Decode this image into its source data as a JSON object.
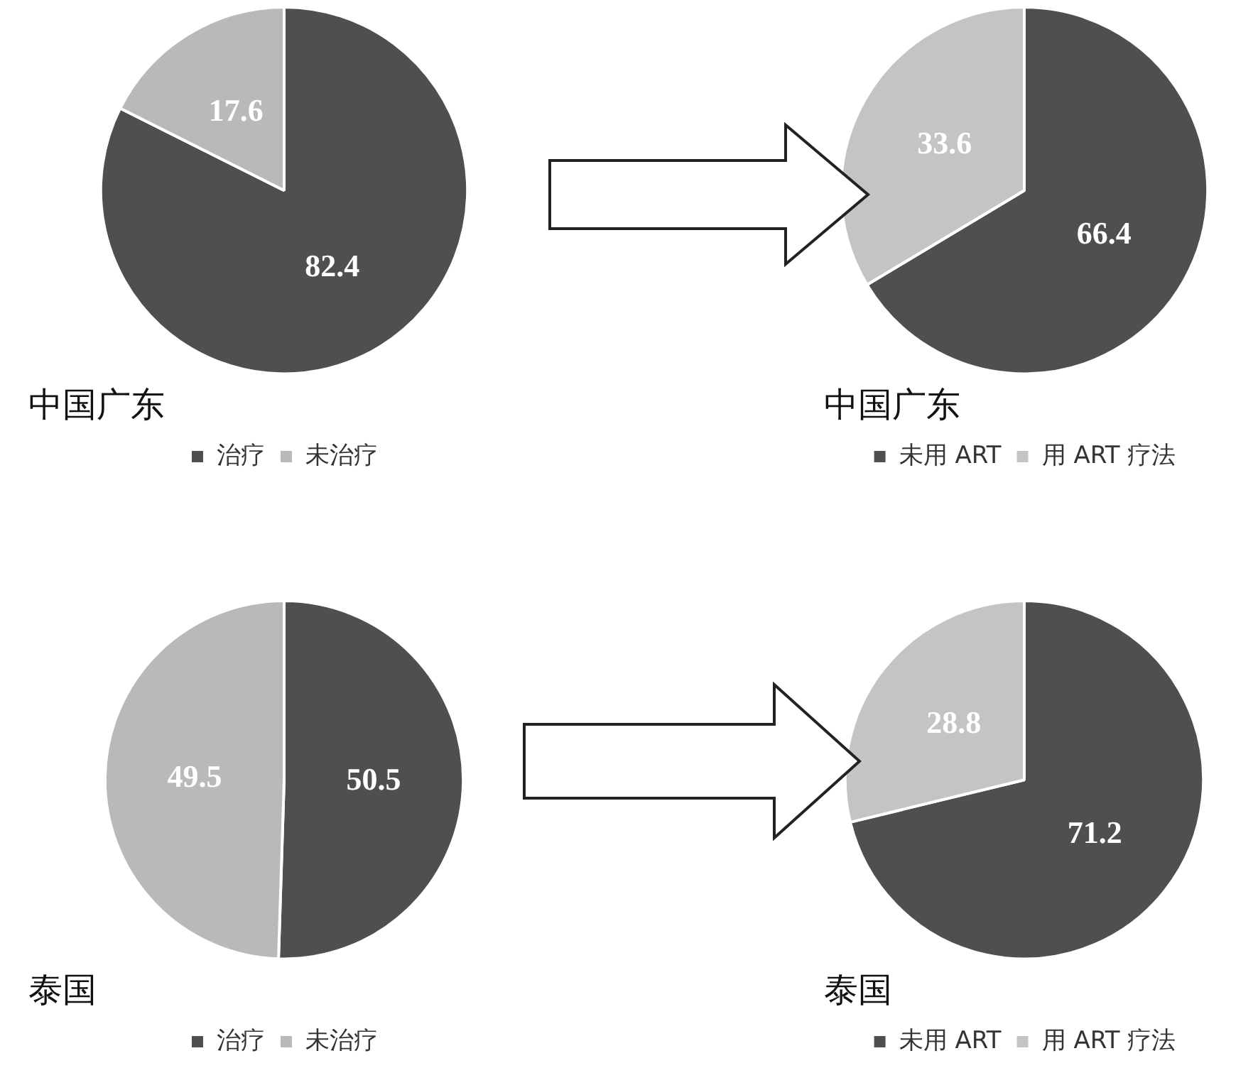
{
  "chart_data": [
    {
      "type": "pie",
      "title": "中国广东",
      "categories": [
        "治疗",
        "未治疗"
      ],
      "values": [
        82.4,
        17.6
      ],
      "colors": [
        "#4f4f4f",
        "#b9b9b9"
      ],
      "data_labels": true,
      "legend": "bottom"
    },
    {
      "type": "pie",
      "title": "中国广东",
      "categories": [
        "未用 ART",
        "用 ART 疗法"
      ],
      "values": [
        66.4,
        33.6
      ],
      "colors": [
        "#4f4f4f",
        "#c4c4c4"
      ],
      "data_labels": true,
      "legend": "bottom"
    },
    {
      "type": "pie",
      "title": "泰国",
      "categories": [
        "治疗",
        "未治疗"
      ],
      "values": [
        50.5,
        49.5
      ],
      "colors": [
        "#4f4f4f",
        "#b9b9b9"
      ],
      "data_labels": true,
      "legend": "bottom"
    },
    {
      "type": "pie",
      "title": "泰国",
      "categories": [
        "未用 ART",
        "用 ART 疗法"
      ],
      "values": [
        71.2,
        28.8
      ],
      "colors": [
        "#4f4f4f",
        "#c4c4c4"
      ],
      "data_labels": true,
      "legend": "bottom"
    }
  ]
}
